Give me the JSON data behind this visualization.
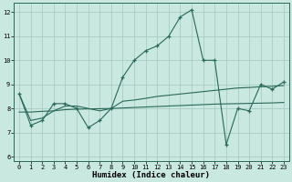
{
  "x": [
    0,
    1,
    2,
    3,
    4,
    5,
    6,
    7,
    8,
    9,
    10,
    11,
    12,
    13,
    14,
    15,
    16,
    17,
    18,
    19,
    20,
    21,
    22,
    23
  ],
  "y_main": [
    8.6,
    7.3,
    7.5,
    8.2,
    8.2,
    8.0,
    7.2,
    7.5,
    8.0,
    9.3,
    10.0,
    10.4,
    10.6,
    11.0,
    11.8,
    12.1,
    10.0,
    10.0,
    6.5,
    8.0,
    7.9,
    9.0,
    8.8,
    9.1
  ],
  "y_trend1": [
    8.6,
    7.5,
    7.6,
    7.9,
    8.1,
    8.1,
    8.0,
    7.9,
    8.0,
    8.3,
    8.35,
    8.42,
    8.5,
    8.55,
    8.6,
    8.65,
    8.7,
    8.75,
    8.8,
    8.85,
    8.87,
    8.9,
    8.92,
    8.95
  ],
  "y_trend2": [
    7.85,
    7.85,
    7.88,
    7.9,
    7.95,
    7.97,
    7.98,
    7.99,
    8.0,
    8.02,
    8.04,
    8.06,
    8.08,
    8.1,
    8.12,
    8.14,
    8.16,
    8.18,
    8.19,
    8.2,
    8.21,
    8.22,
    8.23,
    8.25
  ],
  "bg_color": "#c8e8e0",
  "grid_color": "#a8ccc4",
  "line_color": "#2a6858",
  "xlabel": "Humidex (Indice chaleur)",
  "xlabel_fontsize": 6.5,
  "yticks": [
    6,
    7,
    8,
    9,
    10,
    11,
    12
  ],
  "xticks": [
    0,
    1,
    2,
    3,
    4,
    5,
    6,
    7,
    8,
    9,
    10,
    11,
    12,
    13,
    14,
    15,
    16,
    17,
    18,
    19,
    20,
    21,
    22,
    23
  ],
  "ylim": [
    5.8,
    12.4
  ],
  "xlim": [
    -0.5,
    23.5
  ]
}
